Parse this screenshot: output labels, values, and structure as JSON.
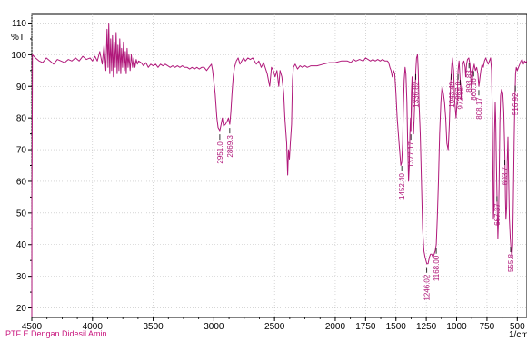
{
  "footer_note": "PTF E Dengan Didesil Amin",
  "chart_data": {
    "type": "line",
    "ylabel": "%T",
    "xlabel_unit": "1/cm",
    "xlim": [
      4500,
      420
    ],
    "ylim": [
      17,
      113
    ],
    "x_ticks": [
      4500,
      4000,
      3500,
      3000,
      2500,
      2000,
      1750,
      1500,
      1250,
      1000,
      750,
      500
    ],
    "x_tick_labels": [
      "4500",
      "4000",
      "3500",
      "3000",
      "2500",
      "2000",
      "1750",
      "1500",
      "1250",
      "1000",
      "750",
      "500"
    ],
    "y_ticks": [
      20,
      30,
      40,
      50,
      60,
      70,
      80,
      90,
      100,
      110
    ],
    "y_tick_labels": [
      "20",
      "30",
      "40",
      "50",
      "60",
      "70",
      "80",
      "90",
      "100",
      "110"
    ],
    "line_color": "#b0187a",
    "grid": true,
    "series": [
      {
        "points": [
          [
            4500,
            17
          ],
          [
            4499,
            55
          ],
          [
            4497,
            72
          ],
          [
            4495,
            100
          ],
          [
            4470,
            99
          ],
          [
            4440,
            98
          ],
          [
            4410,
            97.5
          ],
          [
            4380,
            99
          ],
          [
            4350,
            98
          ],
          [
            4320,
            97
          ],
          [
            4290,
            98.5
          ],
          [
            4260,
            98
          ],
          [
            4230,
            97.5
          ],
          [
            4200,
            98.5
          ],
          [
            4170,
            98
          ],
          [
            4140,
            99
          ],
          [
            4110,
            98
          ],
          [
            4080,
            99.5
          ],
          [
            4050,
            98.5
          ],
          [
            4020,
            99
          ],
          [
            4000,
            98
          ],
          [
            3980,
            99.5
          ],
          [
            3960,
            98
          ],
          [
            3940,
            101
          ],
          [
            3920,
            97
          ],
          [
            3905,
            103
          ],
          [
            3890,
            95
          ],
          [
            3880,
            108
          ],
          [
            3872,
            96
          ],
          [
            3866,
            110
          ],
          [
            3858,
            94
          ],
          [
            3850,
            105
          ],
          [
            3842,
            95
          ],
          [
            3835,
            106
          ],
          [
            3828,
            93
          ],
          [
            3820,
            104
          ],
          [
            3812,
            96
          ],
          [
            3805,
            107
          ],
          [
            3797,
            94
          ],
          [
            3790,
            103
          ],
          [
            3782,
            95
          ],
          [
            3775,
            105
          ],
          [
            3767,
            94
          ],
          [
            3760,
            102
          ],
          [
            3752,
            96
          ],
          [
            3745,
            104
          ],
          [
            3737,
            95
          ],
          [
            3730,
            101
          ],
          [
            3722,
            94
          ],
          [
            3715,
            102
          ],
          [
            3707,
            96
          ],
          [
            3700,
            100
          ],
          [
            3690,
            95
          ],
          [
            3680,
            100
          ],
          [
            3670,
            96
          ],
          [
            3660,
            99
          ],
          [
            3650,
            96
          ],
          [
            3640,
            98.5
          ],
          [
            3630,
            97
          ],
          [
            3620,
            98
          ],
          [
            3600,
            97.5
          ],
          [
            3580,
            96.5
          ],
          [
            3560,
            97.5
          ],
          [
            3540,
            96
          ],
          [
            3520,
            97
          ],
          [
            3500,
            96.5
          ],
          [
            3480,
            97
          ],
          [
            3460,
            96
          ],
          [
            3440,
            97
          ],
          [
            3420,
            96.5
          ],
          [
            3400,
            97
          ],
          [
            3380,
            96.5
          ],
          [
            3360,
            96
          ],
          [
            3340,
            96.5
          ],
          [
            3320,
            96
          ],
          [
            3300,
            96.5
          ],
          [
            3280,
            96
          ],
          [
            3260,
            96.5
          ],
          [
            3240,
            96
          ],
          [
            3220,
            96
          ],
          [
            3200,
            95.5
          ],
          [
            3180,
            96
          ],
          [
            3160,
            95.5
          ],
          [
            3140,
            96
          ],
          [
            3120,
            95.5
          ],
          [
            3100,
            96
          ],
          [
            3080,
            96
          ],
          [
            3060,
            95
          ],
          [
            3040,
            96
          ],
          [
            3020,
            97
          ],
          [
            3010,
            95
          ],
          [
            2990,
            88
          ],
          [
            2975,
            80
          ],
          [
            2965,
            77
          ],
          [
            2951,
            76
          ],
          [
            2940,
            78
          ],
          [
            2930,
            80
          ],
          [
            2920,
            77.5
          ],
          [
            2905,
            78
          ],
          [
            2890,
            79
          ],
          [
            2880,
            80
          ],
          [
            2869,
            78
          ],
          [
            2860,
            82
          ],
          [
            2850,
            88
          ],
          [
            2840,
            93
          ],
          [
            2830,
            96
          ],
          [
            2815,
            98
          ],
          [
            2800,
            99
          ],
          [
            2785,
            97
          ],
          [
            2770,
            98
          ],
          [
            2755,
            99
          ],
          [
            2740,
            98
          ],
          [
            2720,
            99
          ],
          [
            2700,
            98.5
          ],
          [
            2680,
            99
          ],
          [
            2665,
            98
          ],
          [
            2650,
            97
          ],
          [
            2630,
            98
          ],
          [
            2610,
            96
          ],
          [
            2590,
            97.5
          ],
          [
            2560,
            94
          ],
          [
            2540,
            90
          ],
          [
            2525,
            96
          ],
          [
            2510,
            95
          ],
          [
            2495,
            93
          ],
          [
            2480,
            95
          ],
          [
            2465,
            90
          ],
          [
            2455,
            95
          ],
          [
            2440,
            93
          ],
          [
            2425,
            88
          ],
          [
            2415,
            80
          ],
          [
            2400,
            72
          ],
          [
            2392,
            62
          ],
          [
            2385,
            70
          ],
          [
            2378,
            67
          ],
          [
            2370,
            72
          ],
          [
            2360,
            78
          ],
          [
            2352,
            92
          ],
          [
            2345,
            96
          ],
          [
            2330,
            97
          ],
          [
            2310,
            95.5
          ],
          [
            2290,
            96.5
          ],
          [
            2270,
            96
          ],
          [
            2250,
            96.5
          ],
          [
            2230,
            96
          ],
          [
            2200,
            96.5
          ],
          [
            2150,
            96.5
          ],
          [
            2100,
            97
          ],
          [
            2050,
            97.5
          ],
          [
            2000,
            97.5
          ],
          [
            1950,
            98
          ],
          [
            1900,
            98
          ],
          [
            1870,
            97.5
          ],
          [
            1850,
            98.5
          ],
          [
            1830,
            98
          ],
          [
            1800,
            98.5
          ],
          [
            1770,
            98
          ],
          [
            1750,
            99
          ],
          [
            1730,
            98.5
          ],
          [
            1710,
            98
          ],
          [
            1690,
            98.5
          ],
          [
            1670,
            98
          ],
          [
            1650,
            98.5
          ],
          [
            1630,
            98
          ],
          [
            1610,
            98.5
          ],
          [
            1590,
            98
          ],
          [
            1570,
            98
          ],
          [
            1560,
            97.5
          ],
          [
            1550,
            96
          ],
          [
            1540,
            95
          ],
          [
            1530,
            93
          ],
          [
            1520,
            95
          ],
          [
            1510,
            94
          ],
          [
            1500,
            88
          ],
          [
            1490,
            80
          ],
          [
            1480,
            75
          ],
          [
            1470,
            70
          ],
          [
            1460,
            65
          ],
          [
            1452,
            66
          ],
          [
            1445,
            72
          ],
          [
            1440,
            82
          ],
          [
            1432,
            92
          ],
          [
            1425,
            96
          ],
          [
            1418,
            94
          ],
          [
            1410,
            85
          ],
          [
            1402,
            70
          ],
          [
            1396,
            60
          ],
          [
            1390,
            65
          ],
          [
            1385,
            75
          ],
          [
            1380,
            80
          ],
          [
            1377,
            76
          ],
          [
            1372,
            88
          ],
          [
            1367,
            93
          ],
          [
            1360,
            80
          ],
          [
            1355,
            75
          ],
          [
            1350,
            80
          ],
          [
            1342,
            88
          ],
          [
            1336,
            95
          ],
          [
            1330,
            99
          ],
          [
            1322,
            100
          ],
          [
            1316,
            95
          ],
          [
            1310,
            85
          ],
          [
            1300,
            75
          ],
          [
            1290,
            60
          ],
          [
            1280,
            45
          ],
          [
            1270,
            38
          ],
          [
            1260,
            36
          ],
          [
            1246,
            34
          ],
          [
            1235,
            34
          ],
          [
            1225,
            36
          ],
          [
            1215,
            37
          ],
          [
            1205,
            37
          ],
          [
            1195,
            36
          ],
          [
            1185,
            37
          ],
          [
            1177,
            38
          ],
          [
            1168,
            40
          ],
          [
            1160,
            48
          ],
          [
            1150,
            60
          ],
          [
            1140,
            75
          ],
          [
            1130,
            85
          ],
          [
            1120,
            90
          ],
          [
            1110,
            88
          ],
          [
            1100,
            85
          ],
          [
            1090,
            80
          ],
          [
            1080,
            72
          ],
          [
            1070,
            70
          ],
          [
            1060,
            78
          ],
          [
            1050,
            90
          ],
          [
            1043,
            95
          ],
          [
            1035,
            99
          ],
          [
            1025,
            95
          ],
          [
            1015,
            85
          ],
          [
            1005,
            80
          ],
          [
            995,
            86
          ],
          [
            988,
            95
          ],
          [
            980,
            98
          ],
          [
            970,
            92
          ],
          [
            962,
            86
          ],
          [
            955,
            92
          ],
          [
            950,
            97
          ],
          [
            940,
            98
          ],
          [
            930,
            96
          ],
          [
            925,
            93
          ],
          [
            918,
            97
          ],
          [
            910,
            98.5
          ],
          [
            900,
            99
          ],
          [
            890,
            97
          ],
          [
            884,
            93
          ],
          [
            875,
            89
          ],
          [
            865,
            95
          ],
          [
            855,
            97
          ],
          [
            845,
            95
          ],
          [
            835,
            96
          ],
          [
            825,
            94
          ],
          [
            817,
            90
          ],
          [
            810,
            92
          ],
          [
            800,
            95
          ],
          [
            790,
            97
          ],
          [
            780,
            96
          ],
          [
            770,
            98
          ],
          [
            760,
            99
          ],
          [
            750,
            98
          ],
          [
            740,
            97
          ],
          [
            730,
            98
          ],
          [
            720,
            99
          ],
          [
            712,
            95
          ],
          [
            705,
            80
          ],
          [
            700,
            60
          ],
          [
            697,
            48
          ],
          [
            692,
            52
          ],
          [
            688,
            75
          ],
          [
            682,
            85
          ],
          [
            678,
            80
          ],
          [
            672,
            65
          ],
          [
            665,
            50
          ],
          [
            660,
            42
          ],
          [
            655,
            48
          ],
          [
            650,
            60
          ],
          [
            644,
            78
          ],
          [
            638,
            87
          ],
          [
            630,
            89
          ],
          [
            620,
            88
          ],
          [
            612,
            82
          ],
          [
            603,
            68
          ],
          [
            598,
            55
          ],
          [
            594,
            48
          ],
          [
            588,
            52
          ],
          [
            583,
            66
          ],
          [
            577,
            74
          ],
          [
            572,
            62
          ],
          [
            565,
            48
          ],
          [
            558,
            42
          ],
          [
            550,
            38
          ],
          [
            544,
            36
          ],
          [
            538,
            40
          ],
          [
            532,
            55
          ],
          [
            526,
            72
          ],
          [
            520,
            86
          ],
          [
            514,
            94
          ],
          [
            508,
            96
          ],
          [
            500,
            95
          ],
          [
            490,
            96
          ],
          [
            480,
            97
          ],
          [
            470,
            98
          ],
          [
            460,
            98.5
          ],
          [
            450,
            97
          ],
          [
            440,
            98
          ],
          [
            430,
            97.5
          ],
          [
            421,
            98
          ]
        ]
      }
    ],
    "peak_labels": [
      {
        "x": 2951,
        "text": "2951.0"
      },
      {
        "x": 2869,
        "text": "2869.3"
      },
      {
        "x": 1452,
        "text": "1452.40"
      },
      {
        "x": 1377,
        "text": "1377.17"
      },
      {
        "x": 1336,
        "text": "1336.82"
      },
      {
        "x": 1246,
        "text": "1246.02"
      },
      {
        "x": 1168,
        "text": "1168.00"
      },
      {
        "x": 1043,
        "text": "1043.49"
      },
      {
        "x": 988,
        "text": "987.0"
      },
      {
        "x": 972,
        "text": "972.12"
      },
      {
        "x": 898,
        "text": "898.83"
      },
      {
        "x": 860,
        "text": "860.16"
      },
      {
        "x": 817,
        "text": "808.17"
      },
      {
        "x": 668,
        "text": "667.37"
      },
      {
        "x": 603,
        "text": "603.7"
      },
      {
        "x": 555,
        "text": "555.8"
      },
      {
        "x": 516,
        "text": "516.92"
      }
    ]
  }
}
